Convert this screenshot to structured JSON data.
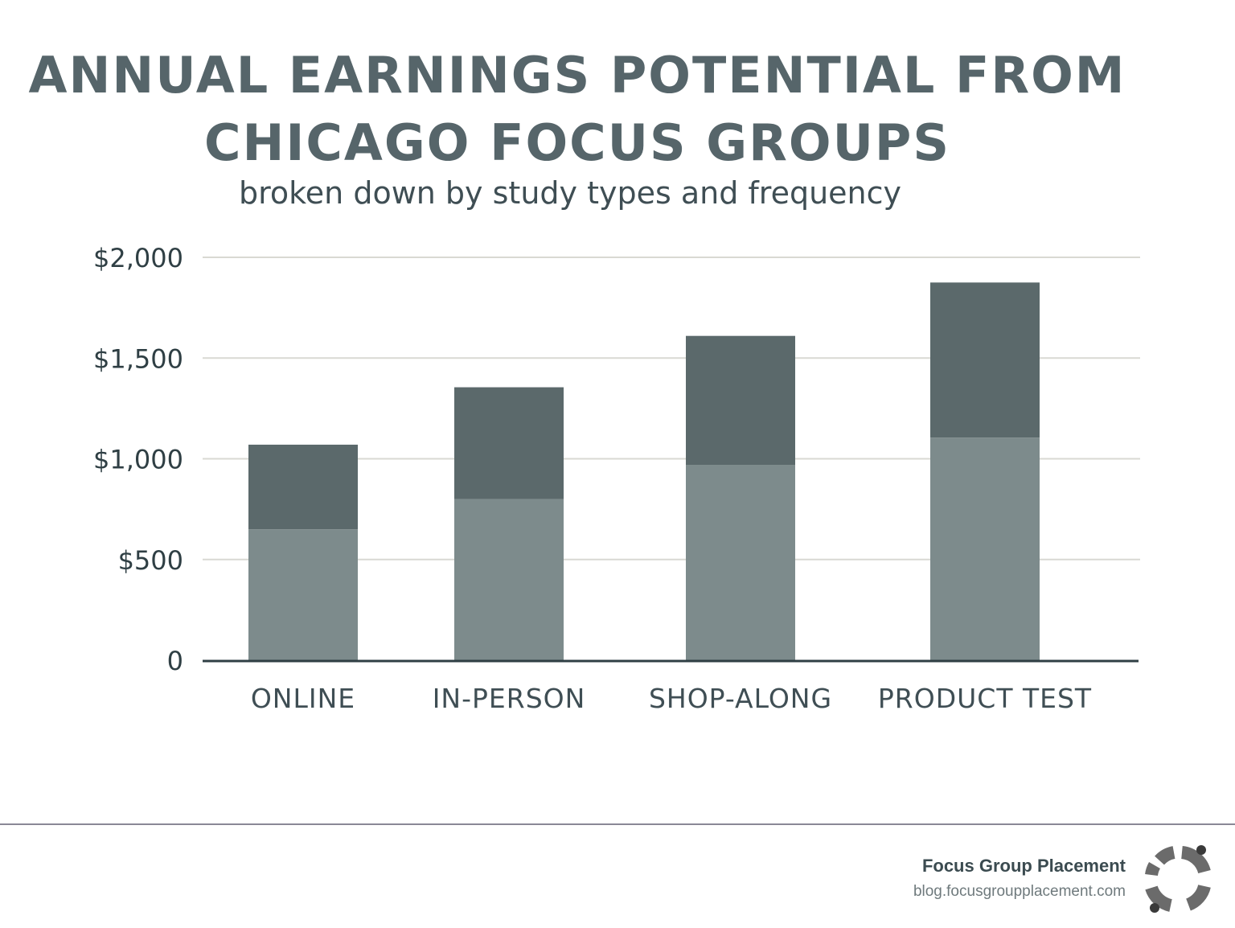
{
  "title": "ANNUAL EARNINGS POTENTIAL FROM CHICAGO FOCUS GROUPS",
  "subtitle": "broken down by study types and frequency",
  "chart_data": {
    "type": "bar",
    "stacked": true,
    "categories": [
      "ONLINE",
      "IN-PERSON",
      "SHOP-ALONG",
      "PRODUCT TEST"
    ],
    "series": [
      {
        "values": [
          650,
          800,
          970,
          1105
        ],
        "color": "#7d8b8c"
      },
      {
        "values": [
          420,
          555,
          640,
          770
        ],
        "color": "#5b696b"
      }
    ],
    "ylim": [
      0,
      2000
    ],
    "yticks": [
      0,
      500,
      1000,
      1500,
      2000
    ],
    "ytick_labels": [
      "0",
      "$500",
      "$1,000",
      "$1,500",
      "$2,000"
    ],
    "grid": true,
    "legend": "none"
  },
  "footer": {
    "brand_name": "Focus Group Placement",
    "brand_url": "blog.focusgroupplacement.com"
  },
  "colors": {
    "title": "#56656a",
    "gridline": "#d9d9d3",
    "axis": "#2f3f44",
    "logo": "#6b6b6b"
  },
  "icons": {
    "logo": "focus-group-placement-logo-icon"
  }
}
